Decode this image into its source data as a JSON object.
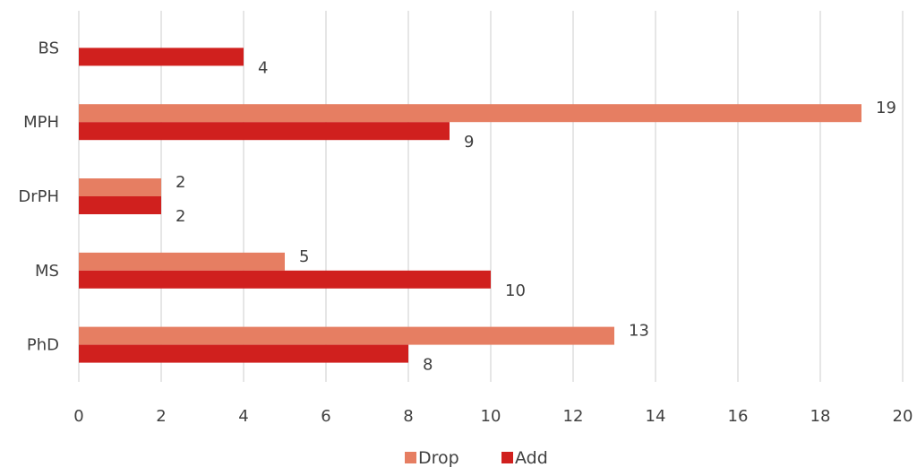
{
  "chart_data": {
    "type": "bar",
    "orientation": "horizontal",
    "title": "",
    "xlabel": "",
    "ylabel": "",
    "categories": [
      "BS",
      "MPH",
      "DrPH",
      "MS",
      "PhD"
    ],
    "series": [
      {
        "name": "Drop",
        "color": "#e67e62",
        "values": [
          null,
          19,
          2,
          5,
          13
        ]
      },
      {
        "name": "Add",
        "color": "#d0201e",
        "values": [
          4,
          9,
          2,
          10,
          8
        ]
      }
    ],
    "xlim": [
      0,
      20
    ],
    "xticks": [
      "0",
      "2",
      "4",
      "6",
      "8",
      "10",
      "12",
      "14",
      "16",
      "18",
      "20"
    ],
    "grid": "vertical",
    "legend": "bottom",
    "data_labels": true
  }
}
